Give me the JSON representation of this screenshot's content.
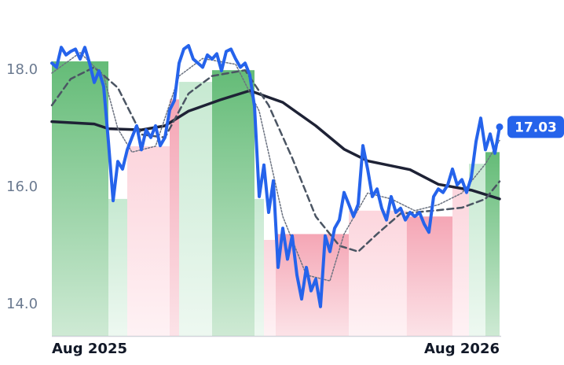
{
  "chart_data": {
    "type": "line",
    "x": [
      0,
      1,
      2,
      3,
      4,
      5,
      6,
      7,
      8,
      9,
      10,
      11,
      12,
      13,
      14,
      15,
      16,
      17,
      18,
      19,
      20,
      21,
      22,
      23,
      24,
      25,
      26,
      27,
      28,
      29,
      30,
      31,
      32,
      33,
      34,
      35,
      36,
      37,
      38,
      39,
      40,
      41,
      42,
      43,
      44,
      45,
      46,
      47,
      48,
      49,
      50,
      51,
      52,
      53,
      54,
      55,
      56,
      57,
      58,
      59,
      60,
      61,
      62,
      63,
      64,
      65,
      66,
      67,
      68,
      69,
      70,
      71,
      72,
      73,
      74,
      75,
      76,
      77,
      78,
      79,
      80,
      81,
      82,
      83,
      84,
      85,
      86,
      87,
      88,
      89,
      90,
      91,
      92,
      93,
      94,
      95
    ],
    "series": [
      {
        "color": "#2563eb",
        "width": 4,
        "dash": "none",
        "values": [
          18.12,
          18.05,
          18.39,
          18.26,
          18.32,
          18.36,
          18.19,
          18.39,
          18.12,
          17.79,
          17.99,
          17.72,
          16.78,
          15.77,
          16.44,
          16.31,
          16.64,
          16.85,
          17.05,
          16.64,
          16.98,
          16.85,
          17.05,
          16.71,
          16.85,
          17.32,
          17.48,
          18.12,
          18.36,
          18.42,
          18.19,
          18.12,
          18.05,
          18.26,
          18.19,
          18.28,
          17.99,
          18.32,
          18.36,
          18.19,
          18.05,
          18.12,
          17.92,
          17.38,
          15.84,
          16.38,
          15.57,
          16.11,
          14.63,
          15.3,
          14.77,
          15.17,
          14.5,
          14.09,
          14.63,
          14.23,
          14.43,
          13.96,
          15.17,
          14.9,
          15.3,
          15.44,
          15.91,
          15.71,
          15.5,
          15.71,
          16.71,
          16.31,
          15.84,
          15.97,
          15.64,
          15.44,
          15.84,
          15.57,
          15.64,
          15.44,
          15.57,
          15.5,
          15.57,
          15.37,
          15.23,
          15.84,
          15.97,
          15.91,
          16.04,
          16.31,
          16.04,
          16.13,
          15.91,
          16.17,
          16.78,
          17.18,
          16.64,
          16.91,
          16.58,
          17.03
        ]
      }
    ],
    "averages": [
      {
        "color": "#1e2235",
        "width": 3.5,
        "dash": "none",
        "x": [
          0,
          9,
          12,
          19,
          24,
          29,
          36,
          42,
          49,
          56,
          62,
          67,
          76,
          82,
          89,
          95
        ],
        "values": [
          17.12,
          17.08,
          17.0,
          16.98,
          17.05,
          17.3,
          17.5,
          17.65,
          17.45,
          17.05,
          16.65,
          16.45,
          16.3,
          16.05,
          15.95,
          15.8
        ]
      },
      {
        "color": "#4b5563",
        "width": 2.5,
        "dash": "8 5",
        "x": [
          0,
          4,
          9,
          14,
          19,
          24,
          29,
          34,
          41,
          46,
          51,
          56,
          61,
          65,
          69,
          74,
          81,
          87,
          92,
          95
        ],
        "values": [
          17.4,
          17.85,
          18.05,
          17.7,
          16.9,
          16.85,
          17.6,
          17.9,
          18.0,
          17.4,
          16.5,
          15.5,
          15.0,
          14.9,
          15.2,
          15.55,
          15.6,
          15.65,
          15.8,
          16.1
        ]
      },
      {
        "color": "#6b7280",
        "width": 1.5,
        "dash": "2 2",
        "x": [
          0,
          6,
          11,
          14,
          17,
          22,
          27,
          32,
          39,
          44,
          49,
          54,
          59,
          62,
          67,
          72,
          77,
          82,
          87,
          92,
          95
        ],
        "values": [
          17.95,
          18.3,
          17.9,
          17.0,
          16.6,
          16.7,
          17.9,
          18.2,
          18.1,
          17.3,
          15.5,
          14.5,
          14.4,
          15.2,
          15.9,
          15.8,
          15.6,
          15.7,
          15.9,
          16.4,
          16.8
        ]
      }
    ],
    "bands": [
      {
        "x0": 0,
        "x1": 12,
        "top": 18.15,
        "color": "#5cb870"
      },
      {
        "x0": 12,
        "x1": 16,
        "top": 15.8,
        "color": "#c4e8cf"
      },
      {
        "x0": 16,
        "x1": 25,
        "top": 16.7,
        "color": "#fcd3db"
      },
      {
        "x0": 25,
        "x1": 27,
        "top": 17.5,
        "color": "#f4a1b1"
      },
      {
        "x0": 27,
        "x1": 34,
        "top": 17.8,
        "color": "#c4e8cf"
      },
      {
        "x0": 34,
        "x1": 43,
        "top": 18.0,
        "color": "#5cb870"
      },
      {
        "x0": 43,
        "x1": 45,
        "top": 15.8,
        "color": "#c4e8cf"
      },
      {
        "x0": 45,
        "x1": 47.5,
        "top": 15.1,
        "color": "#fcd3db"
      },
      {
        "x0": 47.5,
        "x1": 63,
        "top": 15.2,
        "color": "#f4a1b1"
      },
      {
        "x0": 63,
        "x1": 75.3,
        "top": 15.6,
        "color": "#fcd3db"
      },
      {
        "x0": 75.3,
        "x1": 85,
        "top": 15.5,
        "color": "#f4a1b1"
      },
      {
        "x0": 85,
        "x1": 88.5,
        "top": 16.0,
        "color": "#fcd3db"
      },
      {
        "x0": 88.5,
        "x1": 92,
        "top": 16.4,
        "color": "#c4e8cf"
      },
      {
        "x0": 92,
        "x1": 95,
        "top": 16.6,
        "color": "#5cb870"
      }
    ],
    "xlim": [
      0,
      95
    ],
    "xticks": [
      {
        "value": 0,
        "label": "Aug 2025"
      },
      {
        "value": 95,
        "label": "Aug 2026"
      }
    ],
    "ylim": [
      13.46,
      18.93
    ],
    "yticks": [
      {
        "value": 14,
        "label": "14.0"
      },
      {
        "value": 16,
        "label": "16.0"
      },
      {
        "value": 18,
        "label": "18.0"
      }
    ]
  }
}
